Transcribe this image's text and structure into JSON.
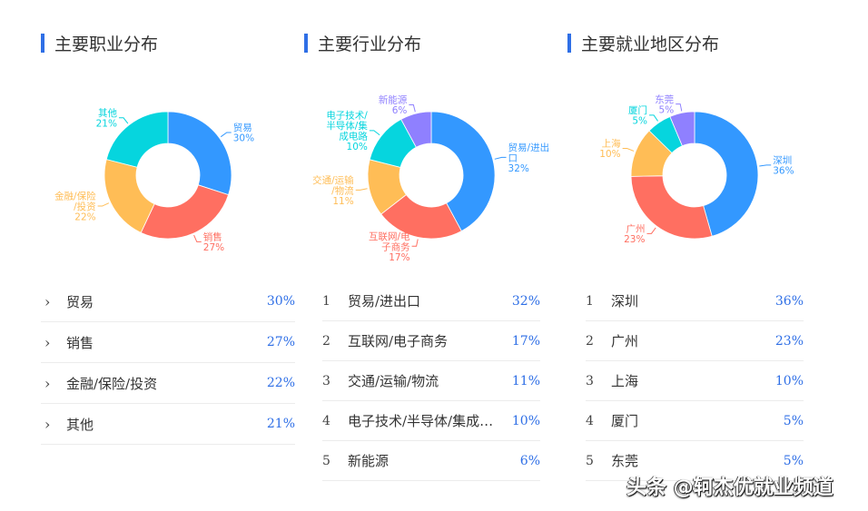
{
  "palette": {
    "accent": "#2f6fe6",
    "slice_colors": [
      "#3398ff",
      "#ff6f61",
      "#ffbd56",
      "#06d5de",
      "#8f80ff"
    ]
  },
  "panels": [
    {
      "title": "主要职业分布",
      "list_style": "chevron",
      "items": [
        {
          "label": "贸易",
          "pct": "30%"
        },
        {
          "label": "销售",
          "pct": "27%"
        },
        {
          "label": "金融/保险/投资",
          "pct": "22%"
        },
        {
          "label": "其他",
          "pct": "21%"
        }
      ]
    },
    {
      "title": "主要行业分布",
      "list_style": "numbered",
      "items": [
        {
          "rank": "1",
          "label": "贸易/进出口",
          "pct": "32%"
        },
        {
          "rank": "2",
          "label": "互联网/电子商务",
          "pct": "17%"
        },
        {
          "rank": "3",
          "label": "交通/运输/物流",
          "pct": "11%"
        },
        {
          "rank": "4",
          "label": "电子技术/半导体/集成…",
          "pct": "10%"
        },
        {
          "rank": "5",
          "label": "新能源",
          "pct": "6%"
        }
      ]
    },
    {
      "title": "主要就业地区分布",
      "list_style": "numbered",
      "items": [
        {
          "rank": "1",
          "label": "深圳",
          "pct": "36%"
        },
        {
          "rank": "2",
          "label": "广州",
          "pct": "23%"
        },
        {
          "rank": "3",
          "label": "上海",
          "pct": "10%"
        },
        {
          "rank": "4",
          "label": "厦门",
          "pct": "5%"
        },
        {
          "rank": "5",
          "label": "东莞",
          "pct": "5%"
        }
      ]
    }
  ],
  "chart_data": [
    {
      "type": "pie",
      "variant": "donut",
      "title": "主要职业分布",
      "categories": [
        "贸易",
        "销售",
        "金融/保险/投资",
        "其他"
      ],
      "values": [
        30,
        27,
        22,
        21
      ],
      "label_lines": [
        [
          "贸易",
          "30%"
        ],
        [
          "销售",
          "27%"
        ],
        [
          "金融/保险",
          "/投资",
          "22%"
        ],
        [
          "其他",
          "21%"
        ]
      ],
      "colors": [
        "#3398ff",
        "#ff6f61",
        "#ffbd56",
        "#06d5de"
      ]
    },
    {
      "type": "pie",
      "variant": "donut",
      "title": "主要行业分布",
      "categories": [
        "贸易/进出口",
        "互联网/电子商务",
        "交通/运输/物流",
        "电子技术/半导体/集成电路",
        "新能源"
      ],
      "values": [
        32,
        17,
        11,
        10,
        6
      ],
      "label_lines": [
        [
          "贸易/进出",
          "口",
          "32%"
        ],
        [
          "互联网/电",
          "子商务",
          "17%"
        ],
        [
          "交通/运输",
          "/物流",
          "11%"
        ],
        [
          "电子技术/",
          "半导体/集",
          "成电路",
          "10%"
        ],
        [
          "新能源",
          "6%"
        ]
      ],
      "colors": [
        "#3398ff",
        "#ff6f61",
        "#ffbd56",
        "#06d5de",
        "#8f80ff"
      ]
    },
    {
      "type": "pie",
      "variant": "donut",
      "title": "主要就业地区分布",
      "categories": [
        "深圳",
        "广州",
        "上海",
        "厦门",
        "东莞"
      ],
      "values": [
        36,
        23,
        10,
        5,
        5
      ],
      "label_lines": [
        [
          "深圳",
          "36%"
        ],
        [
          "广州",
          "23%"
        ],
        [
          "上海",
          "10%"
        ],
        [
          "厦门",
          "5%"
        ],
        [
          "东莞",
          "5%"
        ]
      ],
      "colors": [
        "#3398ff",
        "#ff6f61",
        "#ffbd56",
        "#06d5de",
        "#8f80ff"
      ]
    }
  ],
  "watermark": "头条 @轲杰优就业频道"
}
